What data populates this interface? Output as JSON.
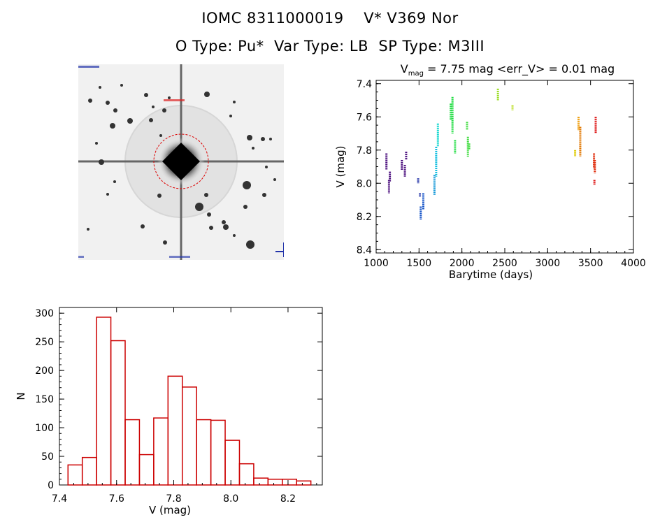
{
  "header": {
    "title_line1": "IOMC 8311000019    V* V369 Nor",
    "title_line2": "O Type: Pu*  Var Type: LB  SP Type: M3III"
  },
  "colors": {
    "hist_bar": "#cc0000",
    "circle": "#dd0000"
  },
  "chart_data": [
    {
      "type": "scatter",
      "title": "V_mag = 7.75 mag <err_V> = 0.01 mag",
      "title_main": "V",
      "title_sub": "mag",
      "title_rest": " = 7.75 mag <err_V> = 0.01 mag",
      "xlabel": "Barytime (days)",
      "ylabel": "V (mag)",
      "xlim": [
        1000,
        4000
      ],
      "ylim": [
        8.42,
        7.38
      ],
      "y_inverted": true,
      "xticks": [
        1000,
        1500,
        2000,
        2500,
        3000,
        3500,
        4000
      ],
      "yticks": [
        7.4,
        7.6,
        7.8,
        8.0,
        8.2,
        8.4
      ],
      "ytick_labels": [
        "7.4",
        "7.6",
        "7.8",
        "8.0",
        "8.2",
        "8.4"
      ],
      "color_scale": "time (purple to red)",
      "segments": [
        {
          "x": 1120,
          "y1": 7.82,
          "y2": 7.92,
          "color": "#4b0f7e"
        },
        {
          "x": 1150,
          "y1": 7.98,
          "y2": 8.06,
          "color": "#4b0f7e"
        },
        {
          "x": 1160,
          "y1": 7.93,
          "y2": 7.99,
          "color": "#4b0f7e"
        },
        {
          "x": 1300,
          "y1": 7.86,
          "y2": 7.92,
          "color": "#4b0f7e"
        },
        {
          "x": 1335,
          "y1": 7.89,
          "y2": 7.96,
          "color": "#4b0f7e"
        },
        {
          "x": 1350,
          "y1": 7.81,
          "y2": 7.86,
          "color": "#4b0f7e"
        },
        {
          "x": 1490,
          "y1": 7.97,
          "y2": 8.0,
          "color": "#2a3aaa"
        },
        {
          "x": 1510,
          "y1": 8.06,
          "y2": 8.08,
          "color": "#2a3aaa"
        },
        {
          "x": 1520,
          "y1": 8.14,
          "y2": 8.22,
          "color": "#1755c8"
        },
        {
          "x": 1550,
          "y1": 8.06,
          "y2": 8.16,
          "color": "#1755c8"
        },
        {
          "x": 1680,
          "y1": 7.95,
          "y2": 8.07,
          "color": "#1799d8"
        },
        {
          "x": 1700,
          "y1": 7.78,
          "y2": 7.96,
          "color": "#18c0e0"
        },
        {
          "x": 1720,
          "y1": 7.64,
          "y2": 7.78,
          "color": "#18d8d0"
        },
        {
          "x": 1870,
          "y1": 7.52,
          "y2": 7.62,
          "color": "#22dd44"
        },
        {
          "x": 1890,
          "y1": 7.48,
          "y2": 7.7,
          "color": "#22dd44"
        },
        {
          "x": 1920,
          "y1": 7.74,
          "y2": 7.82,
          "color": "#22dd44"
        },
        {
          "x": 2060,
          "y1": 7.63,
          "y2": 7.68,
          "color": "#44dd44"
        },
        {
          "x": 2070,
          "y1": 7.72,
          "y2": 7.84,
          "color": "#44dd44"
        },
        {
          "x": 2085,
          "y1": 7.76,
          "y2": 7.8,
          "color": "#44dd44"
        },
        {
          "x": 2420,
          "y1": 7.43,
          "y2": 7.5,
          "color": "#99dd22"
        },
        {
          "x": 2590,
          "y1": 7.53,
          "y2": 7.56,
          "color": "#bbdd22"
        },
        {
          "x": 3320,
          "y1": 7.8,
          "y2": 7.84,
          "color": "#ddcc00"
        },
        {
          "x": 3360,
          "y1": 7.6,
          "y2": 7.68,
          "color": "#ee9900"
        },
        {
          "x": 3380,
          "y1": 7.66,
          "y2": 7.84,
          "color": "#e07700"
        },
        {
          "x": 3540,
          "y1": 7.82,
          "y2": 7.91,
          "color": "#e03010"
        },
        {
          "x": 3550,
          "y1": 7.86,
          "y2": 7.94,
          "color": "#e03010"
        },
        {
          "x": 3560,
          "y1": 7.6,
          "y2": 7.7,
          "color": "#dd1111"
        },
        {
          "x": 3545,
          "y1": 7.98,
          "y2": 8.01,
          "color": "#dd1111"
        }
      ]
    },
    {
      "type": "bar",
      "title": "",
      "xlabel": "V (mag)",
      "ylabel": "N",
      "xlim": [
        7.4,
        8.32
      ],
      "ylim": [
        0,
        310
      ],
      "xticks": [
        7.4,
        7.6,
        7.8,
        8.0,
        8.2
      ],
      "xtick_labels": [
        "7.4",
        "7.6",
        "7.8",
        "8.0",
        "8.2"
      ],
      "yticks": [
        0,
        50,
        100,
        150,
        200,
        250,
        300
      ],
      "bin_width": 0.05,
      "bin_starts": [
        7.43,
        7.48,
        7.53,
        7.58,
        7.63,
        7.68,
        7.73,
        7.78,
        7.83,
        7.88,
        7.93,
        7.98,
        8.03,
        8.08,
        8.13,
        8.18,
        8.23
      ],
      "values": [
        35,
        48,
        293,
        252,
        114,
        53,
        117,
        190,
        171,
        114,
        113,
        78,
        37,
        12,
        10,
        10,
        7
      ]
    }
  ]
}
